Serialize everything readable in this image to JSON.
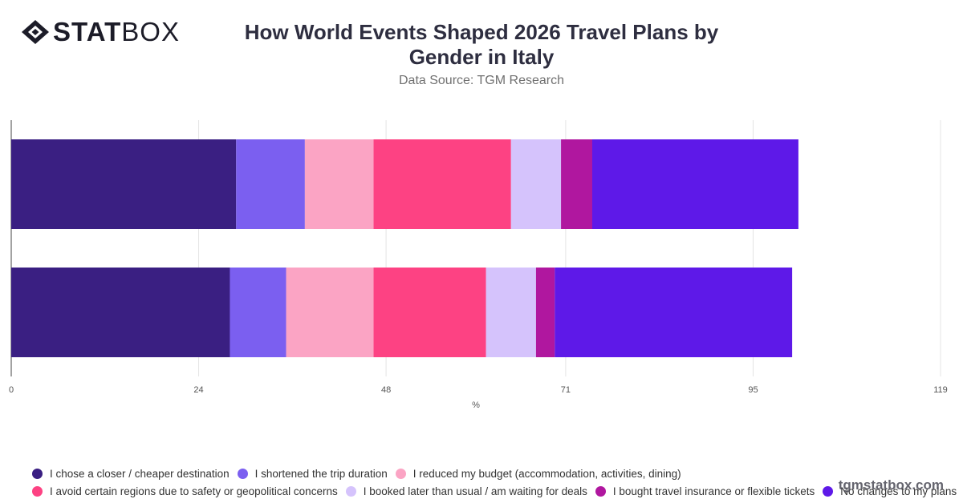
{
  "brand": {
    "logo_bold": "STAT",
    "logo_light": "BOX",
    "watermark": "tgmstatbox.com"
  },
  "header": {
    "title": "How World Events Shaped 2026 Travel Plans by Gender in Italy",
    "subtitle": "Data Source: TGM Research"
  },
  "chart_data": {
    "type": "bar",
    "orientation": "horizontal",
    "stacked": true,
    "title": "How World Events Shaped 2026 Travel Plans by Gender in Italy",
    "subtitle": "Data Source: TGM Research",
    "xlabel": "%",
    "ylabel": "",
    "xlim": [
      0,
      119
    ],
    "x_ticks": [
      "0",
      "24",
      "48",
      "71",
      "95",
      "119"
    ],
    "grid": true,
    "legend_position": "bottom",
    "categories": [
      "",
      ""
    ],
    "series": [
      {
        "name": "I chose a closer / cheaper destination",
        "color": "#3a1f82",
        "values": [
          28.8,
          28.0
        ]
      },
      {
        "name": "I shortened the trip duration",
        "color": "#7b5ff0",
        "values": [
          8.8,
          7.2
        ]
      },
      {
        "name": "I reduced my budget (accommodation, activities, dining)",
        "color": "#fba4c4",
        "values": [
          8.8,
          11.2
        ]
      },
      {
        "name": "I avoid certain regions due to safety or geopolitical concerns",
        "color": "#fd4283",
        "values": [
          17.6,
          14.4
        ]
      },
      {
        "name": "I booked later than usual / am waiting for deals",
        "color": "#d5c3fc",
        "values": [
          6.4,
          6.4
        ]
      },
      {
        "name": "I bought travel insurance or flexible tickets",
        "color": "#b0179f",
        "values": [
          4.0,
          2.4
        ]
      },
      {
        "name": "No changes to my plans",
        "color": "#5e19e8",
        "values": [
          26.4,
          30.4
        ]
      }
    ]
  }
}
